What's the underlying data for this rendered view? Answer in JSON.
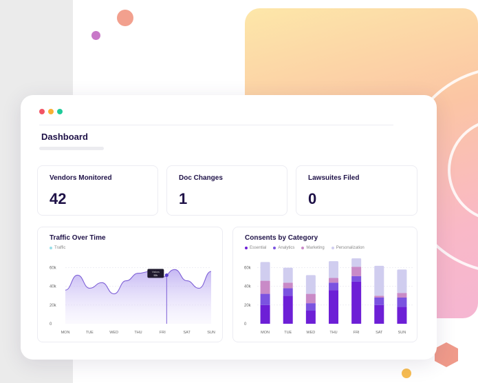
{
  "dashboard": {
    "title": "Dashboard"
  },
  "stats": [
    {
      "label": "Vendors Monitored",
      "value": "42"
    },
    {
      "label": "Doc Changes",
      "value": "1"
    },
    {
      "label": "Lawsuites Filed",
      "value": "0"
    }
  ],
  "traffic_chart": {
    "title": "Traffic Over Time",
    "legend": "Traffic",
    "tooltip_label": "Visitors",
    "tooltip_value": "52k"
  },
  "consents_chart": {
    "title": "Consents by Category"
  },
  "colors": {
    "essential": "#6d1fd6",
    "analytics": "#7b53e0",
    "marketing": "#c98ac7",
    "personalization": "#d0cdef",
    "traffic_line": "#7d5fd6",
    "traffic_legend": "#9adfe8"
  },
  "chart_data": [
    {
      "type": "area",
      "title": "Traffic Over Time",
      "categories": [
        "MON",
        "TUE",
        "WED",
        "THU",
        "FRI",
        "SAT",
        "SUN"
      ],
      "series": [
        {
          "name": "Traffic",
          "x": [
            0,
            0.5,
            1,
            1.5,
            2,
            2.5,
            3,
            3.5,
            4,
            4.5,
            5,
            5.5,
            6
          ],
          "values": [
            36,
            52,
            38,
            44,
            32,
            46,
            54,
            56,
            50,
            58,
            46,
            38,
            56
          ]
        }
      ],
      "yticks": [
        "0",
        "20k",
        "40k",
        "60k"
      ],
      "ylim": [
        0,
        70
      ],
      "highlight": {
        "x": 4.17,
        "value": 52
      },
      "grid": true,
      "legend_position": "top-left"
    },
    {
      "type": "bar",
      "title": "Consents by Category",
      "categories": [
        "MON",
        "TUE",
        "WED",
        "THU",
        "FRI",
        "SAT",
        "SUN"
      ],
      "series": [
        {
          "name": "Essential",
          "values": [
            20,
            30,
            14,
            36,
            45,
            20,
            18
          ]
        },
        {
          "name": "Analytics",
          "values": [
            12,
            8,
            8,
            8,
            6,
            8,
            10
          ]
        },
        {
          "name": "Marketing",
          "values": [
            14,
            6,
            10,
            5,
            10,
            2,
            5
          ]
        },
        {
          "name": "Personalization",
          "values": [
            20,
            16,
            20,
            18,
            9,
            32,
            25
          ]
        }
      ],
      "stacked": true,
      "yticks": [
        "0",
        "20k",
        "40k",
        "60k"
      ],
      "ylim": [
        0,
        70
      ],
      "grid": true,
      "legend_position": "top-left"
    }
  ]
}
